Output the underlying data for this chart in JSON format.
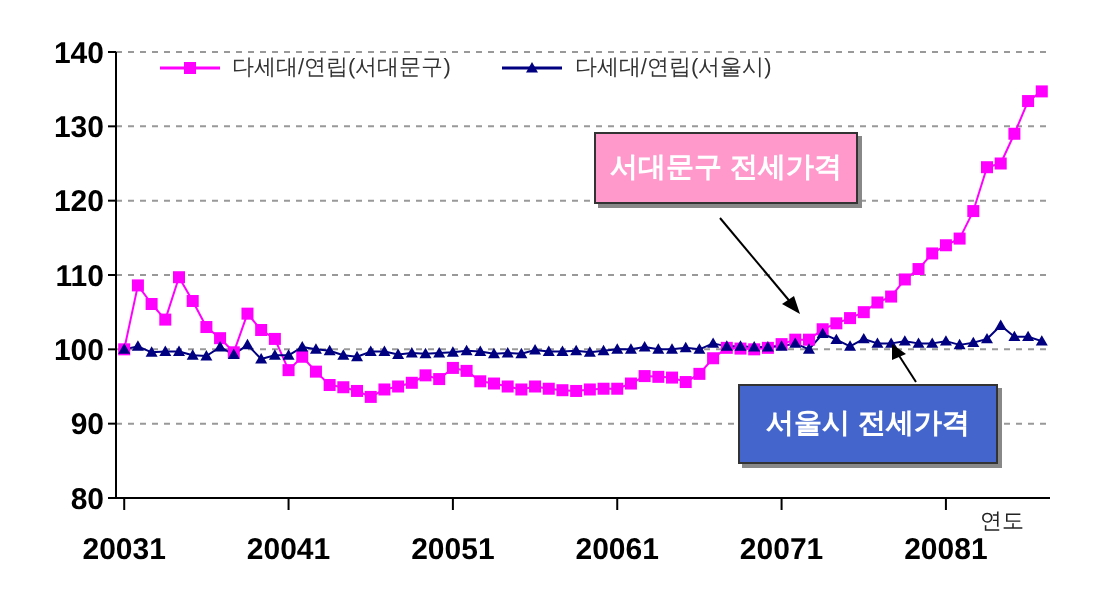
{
  "chart_data": {
    "type": "line",
    "xlabel": "연도",
    "categories": [
      "20031",
      null,
      null,
      null,
      null,
      null,
      null,
      null,
      null,
      null,
      null,
      null,
      "20041",
      null,
      null,
      null,
      null,
      null,
      null,
      null,
      null,
      null,
      null,
      null,
      "20051",
      null,
      null,
      null,
      null,
      null,
      null,
      null,
      null,
      null,
      null,
      null,
      "20061",
      null,
      null,
      null,
      null,
      null,
      null,
      null,
      null,
      null,
      null,
      null,
      "20071",
      null,
      null,
      null,
      null,
      null,
      null,
      null,
      null,
      null,
      null,
      null,
      "20081",
      null,
      null,
      null,
      null,
      null,
      null,
      null
    ],
    "series": [
      {
        "name": "다세대/연립(서대문구)",
        "color": "#ff00ff",
        "marker": "square",
        "values": [
          100,
          108.6,
          106.1,
          104,
          109.7,
          106.5,
          103,
          101.5,
          99.6,
          104.8,
          102.6,
          101.4,
          97.2,
          99,
          97,
          95.2,
          94.9,
          94.4,
          93.6,
          94.6,
          95,
          95.5,
          96.5,
          96,
          97.5,
          97.1,
          95.7,
          95.4,
          95,
          94.6,
          95,
          94.7,
          94.5,
          94.4,
          94.6,
          94.7,
          94.7,
          95.4,
          96.4,
          96.3,
          96.2,
          95.6,
          96.7,
          98.8,
          100.2,
          100.1,
          100,
          100.2,
          100.7,
          101.3,
          101.3,
          102.7,
          103.5,
          104.2,
          105,
          106.3,
          107.1,
          109.4,
          110.8,
          112.9,
          114,
          114.9,
          118.6,
          124.5,
          125,
          129,
          133.4,
          134.7
        ]
      },
      {
        "name": "다세대/연립(서울시)",
        "color": "#000080",
        "marker": "triangle",
        "values": [
          100,
          100.4,
          99.6,
          99.7,
          99.7,
          99.2,
          99.1,
          100.3,
          99.3,
          100.6,
          98.7,
          99.2,
          99.2,
          100.3,
          100,
          99.8,
          99.2,
          99,
          99.7,
          99.7,
          99.3,
          99.5,
          99.4,
          99.5,
          99.6,
          99.8,
          99.7,
          99.4,
          99.5,
          99.4,
          99.9,
          99.7,
          99.7,
          99.8,
          99.6,
          99.8,
          100,
          100,
          100.3,
          100,
          100,
          100.2,
          100,
          100.8,
          100.4,
          100.4,
          100.3,
          100.3,
          100.4,
          100.8,
          100,
          102.1,
          101.3,
          100.4,
          101.4,
          100.8,
          100.8,
          101.1,
          100.8,
          100.8,
          101.1,
          100.6,
          100.9,
          101.4,
          103.2,
          101.7,
          101.7,
          101.1
        ]
      }
    ],
    "ylim": [
      80,
      140
    ],
    "yticks": [
      80,
      90,
      100,
      110,
      120,
      130,
      140
    ],
    "grid": "y",
    "legend": "top left",
    "annotations": [
      "서대문구 전세가격",
      "서울시 전세가격"
    ]
  }
}
